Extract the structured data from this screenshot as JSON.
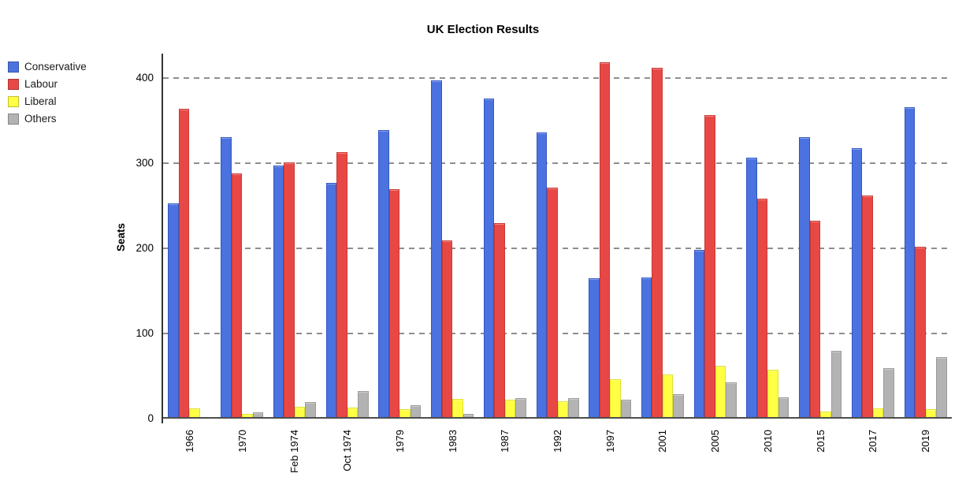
{
  "title": "UK Election Results",
  "chart_data": {
    "type": "bar",
    "title": "UK Election Results",
    "xlabel": "",
    "ylabel": "Seats",
    "ylim": [
      0,
      428
    ],
    "yticks": [
      0,
      100,
      200,
      300,
      400
    ],
    "grid": "horizontal-dashed",
    "legend_position": "top-left",
    "categories": [
      "1966",
      "1970",
      "Feb 1974",
      "Oct 1974",
      "1979",
      "1983",
      "1987",
      "1992",
      "1997",
      "2001",
      "2005",
      "2010",
      "2015",
      "2017",
      "2019"
    ],
    "series": [
      {
        "name": "Conservative",
        "color": "#4b72df",
        "border": "#3156c6",
        "values": [
          253,
          330,
          297,
          277,
          339,
          397,
          376,
          336,
          165,
          166,
          198,
          306,
          330,
          317,
          365
        ]
      },
      {
        "name": "Labour",
        "color": "#e84845",
        "border": "#c93832",
        "values": [
          364,
          288,
          301,
          313,
          269,
          209,
          229,
          271,
          418,
          412,
          356,
          258,
          232,
          262,
          202
        ]
      },
      {
        "name": "Liberal",
        "color": "#ffff43",
        "border": "#e0e02a",
        "values": [
          12,
          6,
          14,
          13,
          11,
          23,
          22,
          20,
          46,
          52,
          62,
          57,
          8,
          12,
          11
        ]
      },
      {
        "name": "Others",
        "color": "#b3b3b3",
        "border": "#9b9b9b",
        "values": [
          2,
          7,
          19,
          32,
          16,
          6,
          24,
          24,
          22,
          29,
          43,
          25,
          80,
          59,
          72
        ]
      }
    ]
  }
}
